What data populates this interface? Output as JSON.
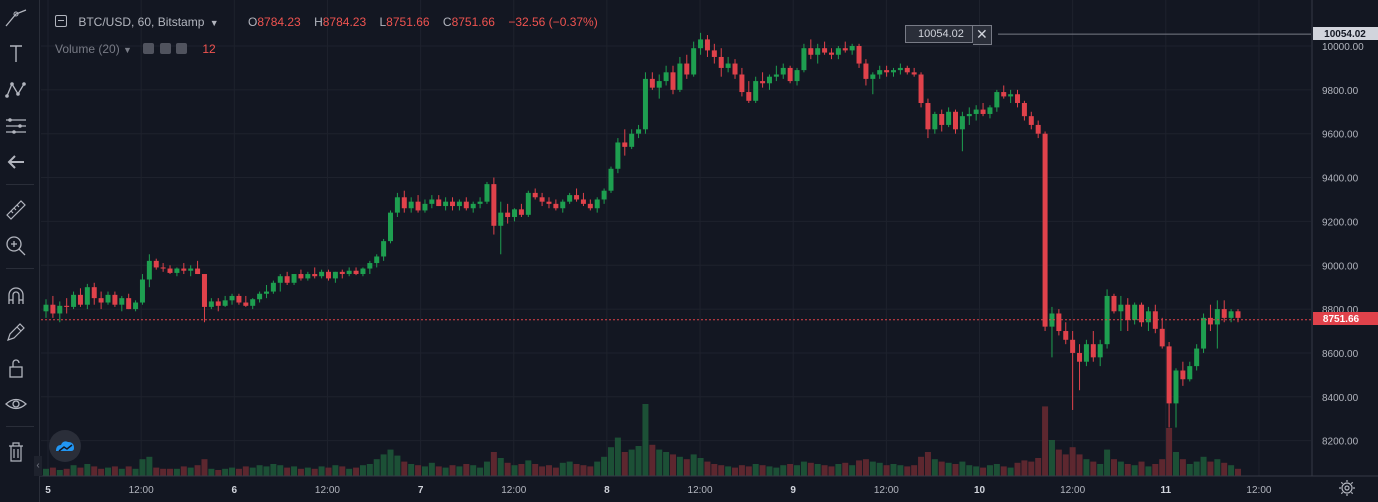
{
  "legend": {
    "symbol": "BTC/USD, 60, Bitstamp",
    "o_label": "O",
    "o_value": "8784.23",
    "h_label": "H",
    "h_value": "8784.23",
    "l_label": "L",
    "l_value": "8751.66",
    "c_label": "C",
    "c_value": "8751.66",
    "change": "−32.56 (−0.37%)",
    "volume_label": "Volume (20)",
    "volume_value": "12"
  },
  "measure": {
    "value": "10054.02",
    "close": "✕"
  },
  "price_tags": {
    "top": "10054.02",
    "current": "8751.66"
  },
  "icons": [
    "trend-line-icon",
    "text-icon",
    "pattern-icon",
    "fib-icon",
    "back-arrow-icon",
    "ruler-icon",
    "zoom-icon",
    "magnet-icon",
    "stay-in-drawing-icon",
    "lock-icon",
    "eye-icon",
    "trash-icon"
  ],
  "colors": {
    "background": "#131722",
    "up": "#26a69a",
    "down": "#ef5350",
    "up_candle": "#1e9f50",
    "down_candle": "#e0424b",
    "price_line": "#e0424b"
  },
  "chart_data": {
    "type": "candlestick",
    "title": "BTC/USD, 60, Bitstamp",
    "ylim": [
      8040,
      10260
    ],
    "y_ticks": [
      "10000.00",
      "9800.00",
      "9600.00",
      "9400.00",
      "9200.00",
      "9000.00",
      "8800.00",
      "8600.00",
      "8400.00",
      "8200.00"
    ],
    "x_ticks": [
      "5",
      "12:00",
      "6",
      "12:00",
      "7",
      "12:00",
      "8",
      "12:00",
      "9",
      "12:00",
      "10",
      "12:00",
      "11",
      "12:00"
    ],
    "candles": [
      [
        8790,
        8845,
        8760,
        8820,
        6
      ],
      [
        8820,
        8860,
        8760,
        8780,
        7
      ],
      [
        8780,
        8835,
        8740,
        8815,
        5
      ],
      [
        8815,
        8850,
        8780,
        8810,
        6
      ],
      [
        8810,
        8880,
        8800,
        8865,
        9
      ],
      [
        8865,
        8895,
        8810,
        8820,
        7
      ],
      [
        8820,
        8915,
        8800,
        8900,
        10
      ],
      [
        8900,
        8920,
        8820,
        8850,
        8
      ],
      [
        8850,
        8880,
        8800,
        8830,
        6
      ],
      [
        8830,
        8880,
        8820,
        8865,
        7
      ],
      [
        8865,
        8880,
        8810,
        8820,
        8
      ],
      [
        8820,
        8860,
        8790,
        8850,
        6
      ],
      [
        8850,
        8870,
        8800,
        8800,
        8
      ],
      [
        8800,
        8840,
        8790,
        8830,
        6
      ],
      [
        8830,
        8960,
        8820,
        8935,
        14
      ],
      [
        8935,
        9050,
        8900,
        9020,
        16
      ],
      [
        9020,
        9030,
        8980,
        8990,
        7
      ],
      [
        8990,
        9010,
        8970,
        8985,
        6
      ],
      [
        8985,
        9000,
        8960,
        8965,
        6
      ],
      [
        8965,
        8990,
        8950,
        8985,
        6
      ],
      [
        8985,
        9010,
        8960,
        8975,
        8
      ],
      [
        8975,
        9000,
        8950,
        8985,
        7
      ],
      [
        8985,
        9020,
        8960,
        8960,
        9
      ],
      [
        8960,
        8960,
        8740,
        8810,
        14
      ],
      [
        8810,
        8850,
        8800,
        8835,
        6
      ],
      [
        8835,
        8850,
        8790,
        8815,
        5
      ],
      [
        8815,
        8860,
        8810,
        8840,
        6
      ],
      [
        8840,
        8870,
        8820,
        8860,
        7
      ],
      [
        8860,
        8870,
        8820,
        8830,
        6
      ],
      [
        8830,
        8860,
        8810,
        8815,
        8
      ],
      [
        8815,
        8850,
        8800,
        8845,
        7
      ],
      [
        8845,
        8880,
        8830,
        8870,
        9
      ],
      [
        8870,
        8910,
        8850,
        8880,
        8
      ],
      [
        8880,
        8930,
        8870,
        8920,
        10
      ],
      [
        8920,
        8960,
        8880,
        8950,
        9
      ],
      [
        8950,
        8970,
        8910,
        8920,
        7
      ],
      [
        8920,
        8960,
        8910,
        8960,
        8
      ],
      [
        8960,
        8980,
        8930,
        8940,
        6
      ],
      [
        8940,
        8970,
        8930,
        8960,
        7
      ],
      [
        8960,
        8990,
        8940,
        8950,
        6
      ],
      [
        8950,
        8980,
        8940,
        8970,
        8
      ],
      [
        8970,
        8980,
        8930,
        8940,
        7
      ],
      [
        8940,
        8970,
        8920,
        8970,
        9
      ],
      [
        8970,
        8980,
        8940,
        8960,
        8
      ],
      [
        8960,
        8990,
        8950,
        8975,
        6
      ],
      [
        8975,
        8990,
        8955,
        8960,
        7
      ],
      [
        8960,
        8990,
        8950,
        8985,
        9
      ],
      [
        8985,
        9020,
        8960,
        9010,
        10
      ],
      [
        9010,
        9050,
        8990,
        9040,
        14
      ],
      [
        9040,
        9120,
        9020,
        9110,
        18
      ],
      [
        9110,
        9250,
        9100,
        9240,
        22
      ],
      [
        9240,
        9330,
        9220,
        9310,
        17
      ],
      [
        9310,
        9340,
        9240,
        9260,
        12
      ],
      [
        9260,
        9310,
        9240,
        9290,
        10
      ],
      [
        9290,
        9320,
        9240,
        9250,
        9
      ],
      [
        9250,
        9300,
        9240,
        9280,
        8
      ],
      [
        9280,
        9320,
        9260,
        9300,
        11
      ],
      [
        9300,
        9320,
        9270,
        9270,
        8
      ],
      [
        9270,
        9310,
        9250,
        9290,
        7
      ],
      [
        9290,
        9310,
        9250,
        9270,
        9
      ],
      [
        9270,
        9300,
        9250,
        9290,
        8
      ],
      [
        9290,
        9310,
        9250,
        9260,
        10
      ],
      [
        9260,
        9290,
        9240,
        9280,
        9
      ],
      [
        9280,
        9310,
        9260,
        9290,
        7
      ],
      [
        9290,
        9380,
        9280,
        9370,
        12
      ],
      [
        9370,
        9400,
        9140,
        9180,
        20
      ],
      [
        9180,
        9290,
        9050,
        9240,
        15
      ],
      [
        9240,
        9280,
        9190,
        9220,
        11
      ],
      [
        9220,
        9260,
        9200,
        9255,
        9
      ],
      [
        9255,
        9280,
        9220,
        9230,
        10
      ],
      [
        9230,
        9340,
        9220,
        9330,
        13
      ],
      [
        9330,
        9350,
        9300,
        9310,
        10
      ],
      [
        9310,
        9330,
        9270,
        9290,
        8
      ],
      [
        9290,
        9310,
        9260,
        9280,
        9
      ],
      [
        9280,
        9300,
        9250,
        9260,
        7
      ],
      [
        9260,
        9300,
        9240,
        9290,
        11
      ],
      [
        9290,
        9330,
        9280,
        9320,
        12
      ],
      [
        9320,
        9350,
        9290,
        9300,
        10
      ],
      [
        9300,
        9330,
        9270,
        9280,
        9
      ],
      [
        9280,
        9300,
        9250,
        9260,
        8
      ],
      [
        9260,
        9310,
        9240,
        9300,
        12
      ],
      [
        9300,
        9350,
        9280,
        9340,
        16
      ],
      [
        9340,
        9450,
        9330,
        9440,
        24
      ],
      [
        9440,
        9580,
        9420,
        9560,
        32
      ],
      [
        9560,
        9620,
        9500,
        9540,
        20
      ],
      [
        9540,
        9620,
        9530,
        9600,
        22
      ],
      [
        9600,
        9640,
        9580,
        9620,
        25
      ],
      [
        9620,
        9880,
        9600,
        9850,
        60
      ],
      [
        9850,
        9880,
        9800,
        9810,
        26
      ],
      [
        9810,
        9870,
        9760,
        9840,
        22
      ],
      [
        9840,
        9910,
        9820,
        9880,
        20
      ],
      [
        9880,
        9910,
        9780,
        9800,
        18
      ],
      [
        9800,
        9950,
        9790,
        9920,
        16
      ],
      [
        9920,
        9960,
        9850,
        9870,
        14
      ],
      [
        9870,
        10020,
        9860,
        9990,
        18
      ],
      [
        9990,
        10060,
        9960,
        10030,
        15
      ],
      [
        10030,
        10050,
        9950,
        9980,
        12
      ],
      [
        9980,
        10010,
        9920,
        9950,
        10
      ],
      [
        9950,
        9990,
        9860,
        9900,
        9
      ],
      [
        9900,
        9950,
        9880,
        9920,
        8
      ],
      [
        9920,
        9940,
        9850,
        9870,
        7
      ],
      [
        9870,
        9900,
        9770,
        9790,
        9
      ],
      [
        9790,
        9840,
        9740,
        9750,
        8
      ],
      [
        9750,
        9860,
        9740,
        9840,
        10
      ],
      [
        9840,
        9880,
        9810,
        9830,
        9
      ],
      [
        9830,
        9870,
        9800,
        9860,
        8
      ],
      [
        9860,
        9910,
        9840,
        9870,
        7
      ],
      [
        9870,
        9920,
        9850,
        9900,
        9
      ],
      [
        9900,
        9910,
        9830,
        9840,
        10
      ],
      [
        9840,
        9900,
        9820,
        9890,
        9
      ],
      [
        9890,
        10010,
        9880,
        9990,
        12
      ],
      [
        9990,
        10030,
        9940,
        9960,
        11
      ],
      [
        9960,
        10010,
        9920,
        9990,
        10
      ],
      [
        9990,
        10020,
        9960,
        9970,
        9
      ],
      [
        9970,
        9990,
        9940,
        9960,
        8
      ],
      [
        9960,
        10000,
        9940,
        9990,
        10
      ],
      [
        9990,
        10020,
        9970,
        9980,
        11
      ],
      [
        9980,
        10010,
        9960,
        10000,
        9
      ],
      [
        10000,
        10010,
        9900,
        9920,
        13
      ],
      [
        9920,
        9940,
        9820,
        9850,
        14
      ],
      [
        9850,
        9880,
        9780,
        9870,
        12
      ],
      [
        9870,
        9910,
        9850,
        9890,
        11
      ],
      [
        9890,
        9910,
        9860,
        9880,
        9
      ],
      [
        9880,
        9900,
        9860,
        9890,
        10
      ],
      [
        9890,
        9920,
        9870,
        9900,
        9
      ],
      [
        9900,
        9910,
        9870,
        9880,
        8
      ],
      [
        9880,
        9900,
        9860,
        9870,
        9
      ],
      [
        9870,
        9880,
        9720,
        9740,
        16
      ],
      [
        9740,
        9760,
        9580,
        9620,
        20
      ],
      [
        9620,
        9700,
        9600,
        9690,
        14
      ],
      [
        9690,
        9710,
        9610,
        9640,
        12
      ],
      [
        9640,
        9720,
        9630,
        9700,
        11
      ],
      [
        9700,
        9710,
        9600,
        9620,
        10
      ],
      [
        9620,
        9700,
        9520,
        9680,
        12
      ],
      [
        9680,
        9720,
        9640,
        9690,
        9
      ],
      [
        9690,
        9730,
        9660,
        9710,
        8
      ],
      [
        9710,
        9740,
        9680,
        9690,
        7
      ],
      [
        9690,
        9730,
        9670,
        9720,
        9
      ],
      [
        9720,
        9800,
        9700,
        9790,
        10
      ],
      [
        9790,
        9820,
        9760,
        9770,
        8
      ],
      [
        9770,
        9800,
        9740,
        9780,
        7
      ],
      [
        9780,
        9800,
        9720,
        9740,
        11
      ],
      [
        9740,
        9750,
        9660,
        9680,
        13
      ],
      [
        9680,
        9700,
        9620,
        9640,
        12
      ],
      [
        9640,
        9660,
        9580,
        9600,
        15
      ],
      [
        9600,
        9610,
        8700,
        8720,
        58
      ],
      [
        8720,
        8810,
        8580,
        8780,
        30
      ],
      [
        8780,
        8800,
        8680,
        8700,
        22
      ],
      [
        8700,
        8740,
        8640,
        8660,
        18
      ],
      [
        8660,
        8700,
        8340,
        8600,
        24
      ],
      [
        8600,
        8640,
        8430,
        8560,
        18
      ],
      [
        8560,
        8660,
        8540,
        8640,
        14
      ],
      [
        8640,
        8700,
        8560,
        8580,
        12
      ],
      [
        8580,
        8660,
        8540,
        8640,
        10
      ],
      [
        8640,
        8890,
        8620,
        8860,
        22
      ],
      [
        8860,
        8870,
        8780,
        8790,
        14
      ],
      [
        8790,
        8860,
        8700,
        8820,
        12
      ],
      [
        8820,
        8850,
        8700,
        8750,
        10
      ],
      [
        8750,
        8830,
        8730,
        8820,
        9
      ],
      [
        8820,
        8830,
        8720,
        8740,
        12
      ],
      [
        8740,
        8810,
        8700,
        8790,
        8
      ],
      [
        8790,
        8820,
        8690,
        8710,
        10
      ],
      [
        8710,
        8760,
        8620,
        8630,
        14
      ],
      [
        8630,
        8650,
        8260,
        8370,
        40
      ],
      [
        8370,
        8530,
        8260,
        8520,
        20
      ],
      [
        8520,
        8560,
        8450,
        8480,
        14
      ],
      [
        8480,
        8560,
        8470,
        8540,
        10
      ],
      [
        8540,
        8640,
        8520,
        8620,
        12
      ],
      [
        8620,
        8780,
        8600,
        8760,
        16
      ],
      [
        8760,
        8820,
        8700,
        8730,
        12
      ],
      [
        8730,
        8840,
        8620,
        8800,
        14
      ],
      [
        8800,
        8840,
        8740,
        8760,
        11
      ],
      [
        8760,
        8800,
        8740,
        8790,
        9
      ],
      [
        8790,
        8800,
        8740,
        8760,
        6
      ]
    ]
  }
}
